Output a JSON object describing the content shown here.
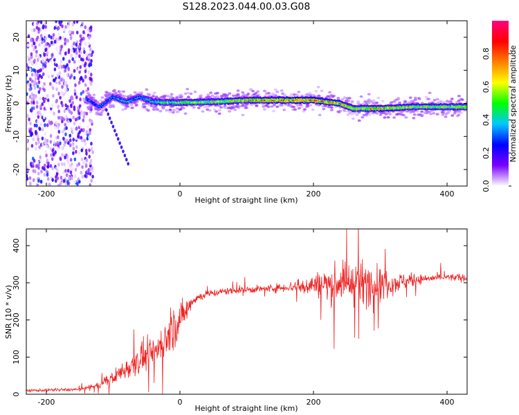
{
  "title": "S128.2023.044.00.03.G08",
  "chart_data": [
    {
      "type": "heatmap",
      "xlabel": "Height of straight line (km)",
      "ylabel": "Frequency (Hz)",
      "xlim": [
        -230,
        430
      ],
      "ylim": [
        -25,
        25
      ],
      "xticks": [
        -200,
        0,
        200,
        400
      ],
      "yticks": [
        20,
        10,
        0,
        -10,
        -20
      ],
      "grid": false,
      "colorbar": {
        "label": "Normalized spectral amplitude",
        "range": [
          0.0,
          1.0
        ],
        "ticks": [
          0.0,
          0.2,
          0.4,
          0.6,
          0.8
        ],
        "tick_labels": [
          "0.0",
          "0.2",
          "0.4",
          "0.6",
          "0.8"
        ],
        "colormap": [
          "#ffffff",
          "#7a00ff",
          "#0000ff",
          "#00c8ff",
          "#00ff00",
          "#ffff00",
          "#ff7f00",
          "#ff0000",
          "#ff0080"
        ]
      },
      "ridge": {
        "x": [
          -140,
          -120,
          -100,
          -80,
          -60,
          -40,
          -20,
          0,
          50,
          100,
          150,
          200,
          240,
          260,
          300,
          350,
          400,
          430
        ],
        "frequency": [
          1.5,
          -1,
          2,
          0.5,
          2,
          0.5,
          0.3,
          0.3,
          0.5,
          1,
          1,
          1,
          0,
          -1.5,
          -1.5,
          -1,
          -1,
          -1
        ],
        "amplitude": [
          0.3,
          0.3,
          0.35,
          0.4,
          0.35,
          0.45,
          0.5,
          0.55,
          0.6,
          0.7,
          0.75,
          0.8,
          0.7,
          0.6,
          0.7,
          0.6,
          0.6,
          0.6
        ]
      },
      "noise_region_x": [
        -230,
        -130
      ]
    },
    {
      "type": "line",
      "xlabel": "Height of straight line (km)",
      "ylabel": "SNR (10 * v/v)",
      "xlim": [
        -230,
        430
      ],
      "ylim": [
        0,
        445
      ],
      "xticks": [
        -200,
        0,
        200,
        400
      ],
      "yticks": [
        0,
        100,
        200,
        300,
        400
      ],
      "grid": false,
      "series": [
        {
          "color": "#ee2222",
          "x": [
            -230,
            -200,
            -150,
            -120,
            -100,
            -80,
            -60,
            -40,
            -20,
            0,
            20,
            40,
            80,
            120,
            160,
            200,
            240,
            280,
            320,
            360,
            400,
            430
          ],
          "y": [
            10,
            11,
            13,
            25,
            45,
            70,
            95,
            110,
            150,
            200,
            255,
            270,
            280,
            283,
            288,
            295,
            300,
            298,
            300,
            310,
            315,
            313
          ],
          "noise_amplitude": [
            4,
            4,
            4,
            8,
            18,
            30,
            40,
            45,
            55,
            50,
            15,
            10,
            10,
            10,
            12,
            30,
            55,
            60,
            30,
            12,
            10,
            10
          ]
        }
      ]
    }
  ]
}
